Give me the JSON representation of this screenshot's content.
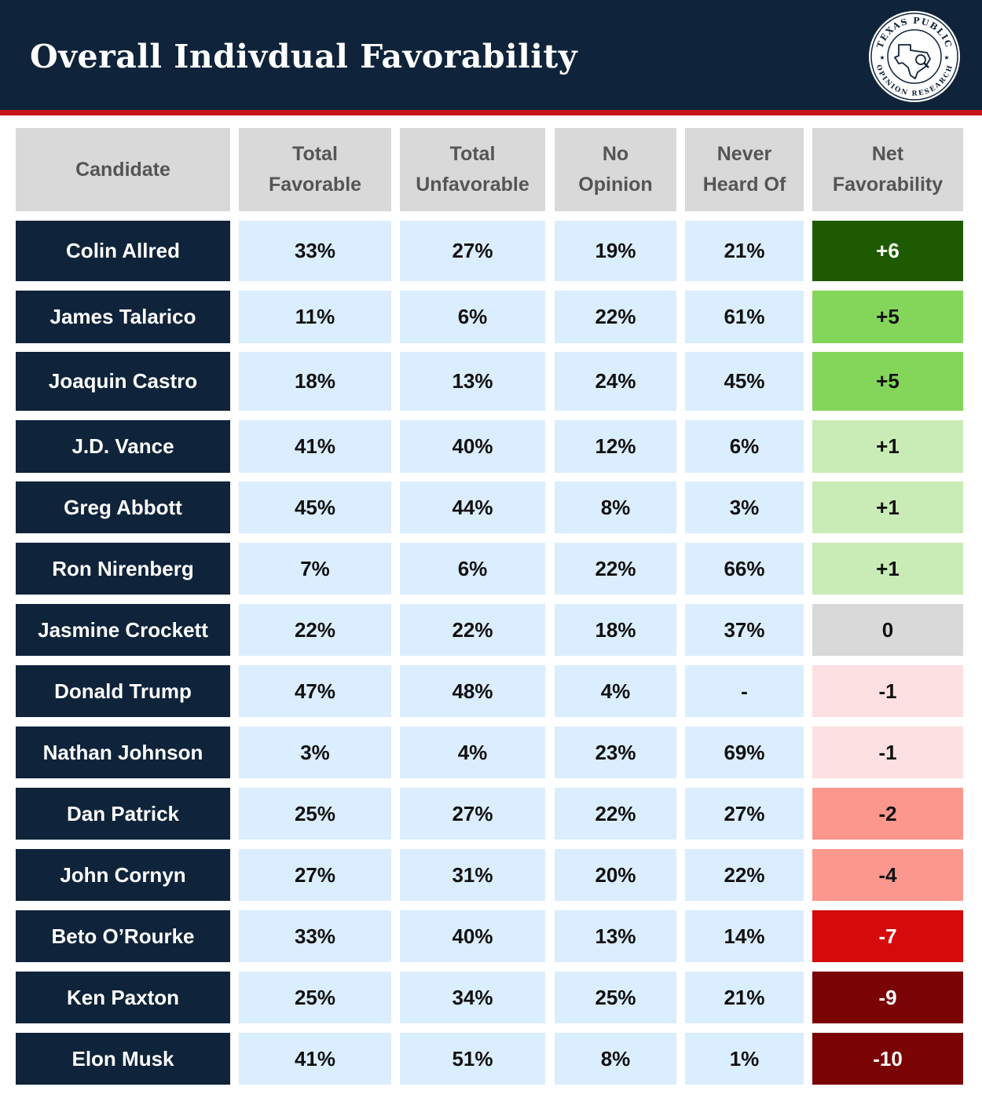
{
  "title": "Overall Indivdual Favorability",
  "seal": {
    "top_text": "TEXAS PUBLIC",
    "bottom_text": "OPINION RESEARCH",
    "icon": "texas-map-magnifier-icon"
  },
  "colors": {
    "header_bg": "#0f243a",
    "accent_red": "#c8141b",
    "cell_bg": "#dbeeff",
    "header_cell_bg": "#d9d9d9"
  },
  "chart_data": {
    "type": "table",
    "title": "Overall Indivdual Favorability",
    "columns": [
      "Candidate",
      "Total\nFavorable",
      "Total\nUnfavorable",
      "No\nOpinion",
      "Never\nHeard Of",
      "Net\nFavorability"
    ],
    "rows": [
      {
        "candidate": "Colin Allred",
        "favorable": "33%",
        "unfavorable": "27%",
        "no_opinion": "19%",
        "never_heard": "21%",
        "net": "+6",
        "net_value": 6,
        "net_bg": "#1e5a00",
        "net_fg": "#ffffff"
      },
      {
        "candidate": "James Talarico",
        "favorable": "11%",
        "unfavorable": "6%",
        "no_opinion": "22%",
        "never_heard": "61%",
        "net": "+5",
        "net_value": 5,
        "net_bg": "#84d65a",
        "net_fg": "#111111"
      },
      {
        "candidate": "Joaquin Castro",
        "favorable": "18%",
        "unfavorable": "13%",
        "no_opinion": "24%",
        "never_heard": "45%",
        "net": "+5",
        "net_value": 5,
        "net_bg": "#84d65a",
        "net_fg": "#111111"
      },
      {
        "candidate": "J.D. Vance",
        "favorable": "41%",
        "unfavorable": "40%",
        "no_opinion": "12%",
        "never_heard": "6%",
        "net": "+1",
        "net_value": 1,
        "net_bg": "#c9ecb6",
        "net_fg": "#111111"
      },
      {
        "candidate": "Greg Abbott",
        "favorable": "45%",
        "unfavorable": "44%",
        "no_opinion": "8%",
        "never_heard": "3%",
        "net": "+1",
        "net_value": 1,
        "net_bg": "#c9ecb6",
        "net_fg": "#111111"
      },
      {
        "candidate": "Ron Nirenberg",
        "favorable": "7%",
        "unfavorable": "6%",
        "no_opinion": "22%",
        "never_heard": "66%",
        "net": "+1",
        "net_value": 1,
        "net_bg": "#c9ecb6",
        "net_fg": "#111111"
      },
      {
        "candidate": "Jasmine Crockett",
        "favorable": "22%",
        "unfavorable": "22%",
        "no_opinion": "18%",
        "never_heard": "37%",
        "net": "0",
        "net_value": 0,
        "net_bg": "#d9d9d9",
        "net_fg": "#111111"
      },
      {
        "candidate": "Donald Trump",
        "favorable": "47%",
        "unfavorable": "48%",
        "no_opinion": "4%",
        "never_heard": "-",
        "net": "-1",
        "net_value": -1,
        "net_bg": "#fde0e1",
        "net_fg": "#111111"
      },
      {
        "candidate": "Nathan Johnson",
        "favorable": "3%",
        "unfavorable": "4%",
        "no_opinion": "23%",
        "never_heard": "69%",
        "net": "-1",
        "net_value": -1,
        "net_bg": "#fde0e1",
        "net_fg": "#111111"
      },
      {
        "candidate": "Dan Patrick",
        "favorable": "25%",
        "unfavorable": "27%",
        "no_opinion": "22%",
        "never_heard": "27%",
        "net": "-2",
        "net_value": -2,
        "net_bg": "#fc978d",
        "net_fg": "#111111"
      },
      {
        "candidate": "John Cornyn",
        "favorable": "27%",
        "unfavorable": "31%",
        "no_opinion": "20%",
        "never_heard": "22%",
        "net": "-4",
        "net_value": -4,
        "net_bg": "#fc978d",
        "net_fg": "#111111"
      },
      {
        "candidate": "Beto O’Rourke",
        "favorable": "33%",
        "unfavorable": "40%",
        "no_opinion": "13%",
        "never_heard": "14%",
        "net": "-7",
        "net_value": -7,
        "net_bg": "#d60a0a",
        "net_fg": "#ffffff"
      },
      {
        "candidate": "Ken Paxton",
        "favorable": "25%",
        "unfavorable": "34%",
        "no_opinion": "25%",
        "never_heard": "21%",
        "net": "-9",
        "net_value": -9,
        "net_bg": "#7a0404",
        "net_fg": "#ffffff"
      },
      {
        "candidate": "Elon Musk",
        "favorable": "41%",
        "unfavorable": "51%",
        "no_opinion": "8%",
        "never_heard": "1%",
        "net": "-10",
        "net_value": -10,
        "net_bg": "#7a0404",
        "net_fg": "#ffffff"
      }
    ]
  }
}
